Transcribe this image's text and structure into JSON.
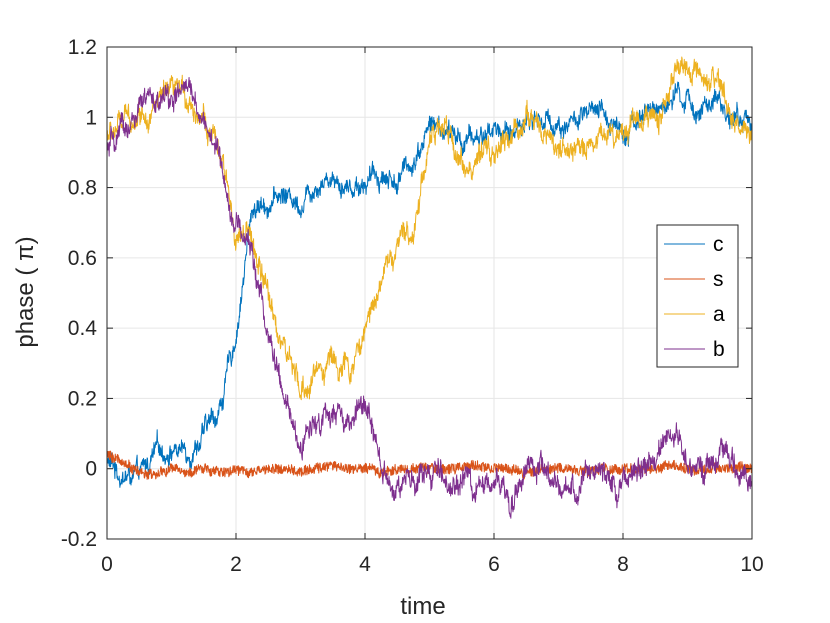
{
  "chart_data": {
    "type": "line",
    "title": "",
    "xlabel": "time",
    "ylabel": "phase ( π)",
    "xlim": [
      0,
      10
    ],
    "ylim": [
      -0.2,
      1.2
    ],
    "xticks": [
      0,
      2,
      4,
      6,
      8,
      10
    ],
    "yticks": [
      -0.2,
      0,
      0.2,
      0.4,
      0.6,
      0.8,
      1,
      1.2
    ],
    "xtick_labels": [
      "0",
      "2",
      "4",
      "6",
      "8",
      "10"
    ],
    "ytick_labels": [
      "-0.2",
      "0",
      "0.2",
      "0.4",
      "0.6",
      "0.8",
      "1",
      "1.2"
    ],
    "grid": true,
    "legend_position": "right",
    "x": [
      0,
      0.25,
      0.5,
      0.75,
      1,
      1.25,
      1.5,
      1.75,
      2,
      2.25,
      2.5,
      2.75,
      3,
      3.25,
      3.5,
      3.75,
      4,
      4.25,
      4.5,
      4.75,
      5,
      5.25,
      5.5,
      5.75,
      6,
      6.25,
      6.5,
      6.75,
      7,
      7.25,
      7.5,
      7.75,
      8,
      8.25,
      8.5,
      8.75,
      9,
      9.25,
      9.5,
      9.75,
      10
    ],
    "series": [
      {
        "name": "c",
        "color": "#0072BD",
        "values": [
          0.02,
          -0.02,
          -0.03,
          0.04,
          0.06,
          0.05,
          0.1,
          0.17,
          0.38,
          0.74,
          0.76,
          0.78,
          0.76,
          0.82,
          0.84,
          0.8,
          0.82,
          0.84,
          0.82,
          0.88,
          0.98,
          0.96,
          0.93,
          0.94,
          0.97,
          0.95,
          1.0,
          0.99,
          0.98,
          0.99,
          1.0,
          1.0,
          0.97,
          1.0,
          1.02,
          1.05,
          1.04,
          1.02,
          1.03,
          1.0,
          0.98
        ]
      },
      {
        "name": "s",
        "color": "#D95319",
        "values": [
          0.04,
          0.02,
          -0.01,
          -0.02,
          0.0,
          -0.01,
          0.0,
          -0.01,
          0.0,
          -0.01,
          0.0,
          0.0,
          -0.01,
          0.0,
          0.01,
          0.0,
          0.0,
          -0.01,
          0.0,
          0.0,
          0.0,
          0.0,
          0.0,
          0.01,
          0.0,
          0.0,
          -0.01,
          0.0,
          0.0,
          0.0,
          -0.01,
          0.0,
          0.0,
          0.0,
          0.0,
          0.01,
          0.0,
          0.0,
          0.0,
          0.0,
          0.0
        ]
      },
      {
        "name": "a",
        "color": "#EDB120",
        "values": [
          0.95,
          0.98,
          1.02,
          1.04,
          1.05,
          1.06,
          1.0,
          0.88,
          0.68,
          0.64,
          0.48,
          0.35,
          0.2,
          0.28,
          0.32,
          0.27,
          0.38,
          0.56,
          0.62,
          0.68,
          0.95,
          0.96,
          0.88,
          0.86,
          0.9,
          0.93,
          1.01,
          0.96,
          0.92,
          0.88,
          0.94,
          0.96,
          0.96,
          1.02,
          0.98,
          1.1,
          1.14,
          1.06,
          1.08,
          0.98,
          0.94
        ]
      },
      {
        "name": "b",
        "color": "#7E2F8E",
        "values": [
          0.9,
          0.95,
          1.02,
          1.04,
          1.05,
          1.07,
          1.0,
          0.88,
          0.7,
          0.62,
          0.38,
          0.18,
          0.05,
          0.16,
          0.14,
          0.12,
          0.17,
          0.03,
          -0.06,
          -0.04,
          -0.02,
          -0.04,
          -0.02,
          -0.08,
          -0.03,
          -0.08,
          0.02,
          -0.02,
          -0.08,
          -0.06,
          -0.02,
          -0.01,
          -0.04,
          0.0,
          0.03,
          0.1,
          0.05,
          -0.02,
          0.04,
          0.02,
          -0.05
        ]
      }
    ]
  }
}
